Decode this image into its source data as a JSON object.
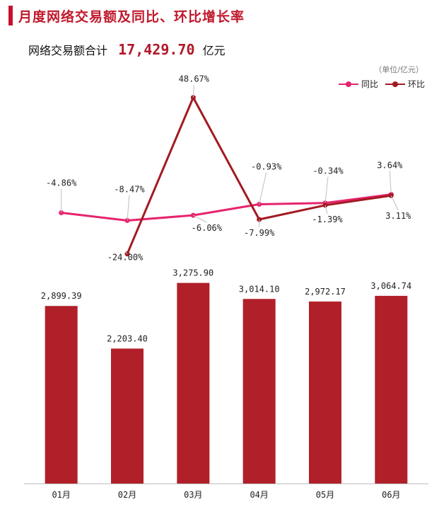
{
  "header": {
    "title": "月度网络交易额及同比、环比增长率",
    "total_label": "网络交易额合计",
    "total_value": "17,429.70",
    "total_unit": "亿元",
    "unit_note": "（单位/亿元）"
  },
  "colors": {
    "bar": "#b11f29",
    "yoy": "#e6246e",
    "mom": "#a31a22",
    "title_accent": "#c8102e"
  },
  "chart_data": {
    "type": "bar+line",
    "categories": [
      "01月",
      "02月",
      "03月",
      "04月",
      "05月",
      "06月"
    ],
    "bar_series": {
      "name": "网络交易额",
      "values": [
        2899.39,
        2203.4,
        3275.9,
        3014.1,
        2972.17,
        3064.74
      ],
      "labels": [
        "2,899.39",
        "2,203.40",
        "3,275.90",
        "3,014.10",
        "2,972.17",
        "3,064.74"
      ]
    },
    "line_series": [
      {
        "name": "同比",
        "values": [
          -4.86,
          -8.47,
          -6.06,
          -0.93,
          -0.34,
          3.64
        ],
        "labels": [
          "-4.86%",
          "-8.47%",
          "-6.06%",
          "-0.93%",
          "-0.34%",
          "3.64%"
        ]
      },
      {
        "name": "环比",
        "values": [
          null,
          -24.0,
          48.67,
          -7.99,
          -1.39,
          3.11
        ],
        "labels": [
          "",
          "-24.00%",
          "48.67%",
          "-7.99%",
          "-1.39%",
          "3.11%"
        ]
      }
    ],
    "legend": [
      "同比",
      "环比"
    ],
    "legend_position": "top-right"
  }
}
